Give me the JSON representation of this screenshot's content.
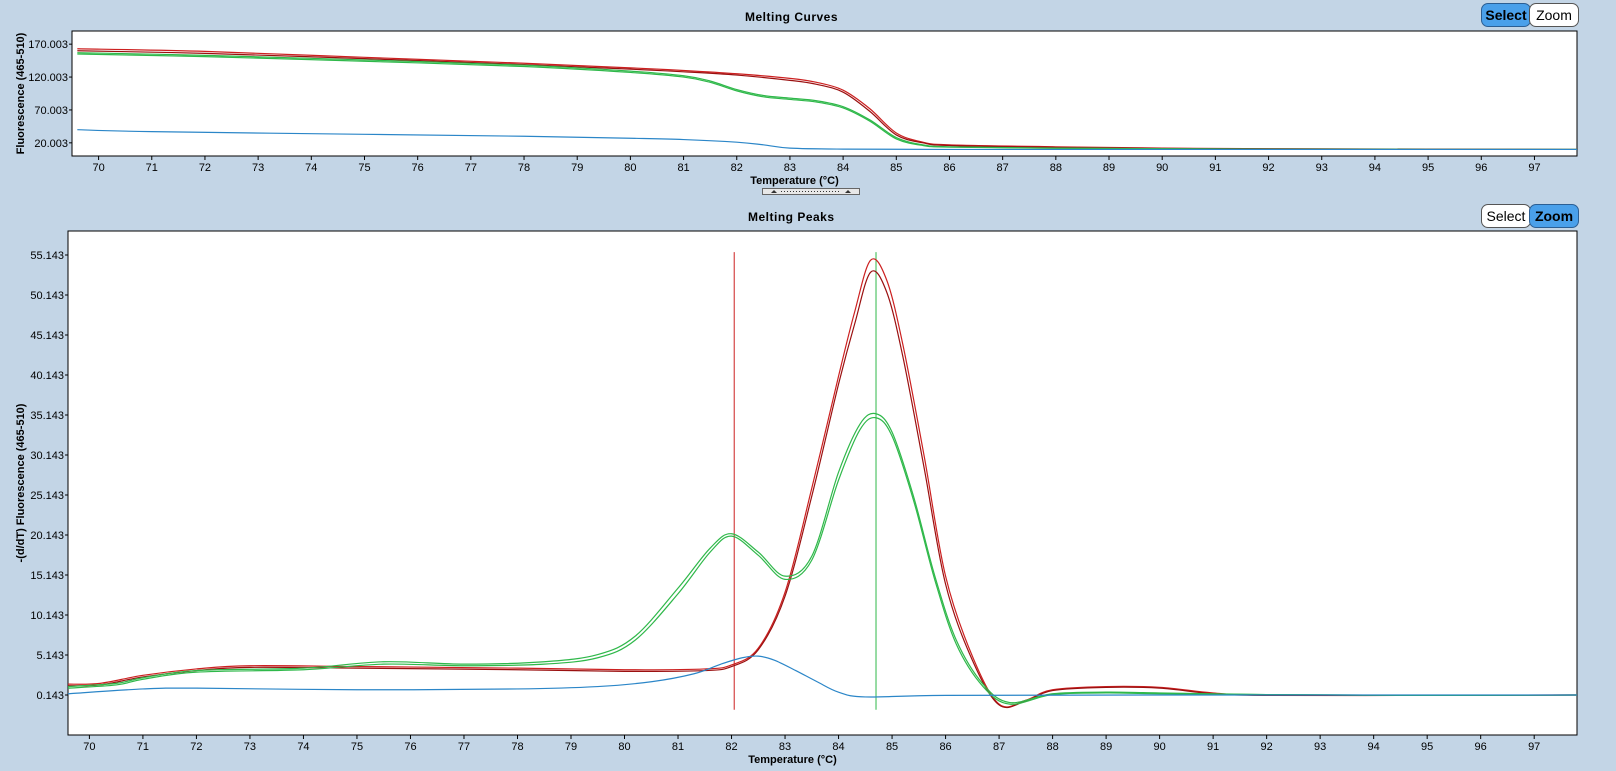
{
  "top_panel": {
    "title": "Melting Curves",
    "select_label": "Select",
    "zoom_label": "Zoom",
    "active_mode": "select"
  },
  "bottom_panel": {
    "title": "Melting Peaks",
    "select_label": "Select",
    "zoom_label": "Zoom",
    "active_mode": "zoom"
  },
  "colors": {
    "red": "#cc2020",
    "darkred": "#9a1010",
    "green": "#2fb84a",
    "blue": "#2b86c8",
    "background": "#c3d5e6"
  },
  "chart_data": [
    {
      "type": "line",
      "title": "Melting Curves",
      "xlabel": "Temperature (°C)",
      "ylabel": "Fluorescence (465-510)",
      "xlim": [
        69.5,
        97.8
      ],
      "ylim": [
        0,
        190
      ],
      "xticks": [
        70,
        71,
        72,
        73,
        74,
        75,
        76,
        77,
        78,
        79,
        80,
        81,
        82,
        83,
        84,
        85,
        86,
        87,
        88,
        89,
        90,
        91,
        92,
        93,
        94,
        95,
        96,
        97
      ],
      "yticks": [
        "20.003",
        "70.003",
        "120.003",
        "170.003"
      ],
      "ytick_values": [
        20.003,
        70.003,
        120.003,
        170.003
      ],
      "grid": false,
      "series": [
        {
          "color": "red",
          "x": [
            69.6,
            72,
            75,
            78,
            80,
            81,
            82,
            83,
            83.5,
            84,
            84.5,
            85,
            85.5,
            86,
            88,
            90,
            92,
            95,
            97.8
          ],
          "y": [
            163,
            159,
            150,
            141,
            134,
            130,
            125,
            118,
            112,
            100,
            72,
            35,
            21,
            17,
            14,
            12,
            11,
            10.5,
            10
          ]
        },
        {
          "color": "darkred",
          "x": [
            69.6,
            72,
            75,
            78,
            80,
            81,
            82,
            83,
            83.5,
            84,
            84.5,
            85,
            85.5,
            86,
            88,
            90,
            92,
            95,
            97.8
          ],
          "y": [
            160,
            156,
            148,
            139,
            132,
            128,
            123,
            115,
            109,
            97,
            68,
            32,
            20,
            16,
            13,
            11.5,
            10.8,
            10.3,
            10
          ]
        },
        {
          "color": "green",
          "x": [
            69.6,
            72,
            75,
            78,
            80,
            81,
            81.5,
            82,
            82.5,
            83,
            83.5,
            84,
            84.5,
            85,
            85.5,
            86,
            88,
            90,
            92,
            95,
            97.8
          ],
          "y": [
            157,
            153,
            146,
            138,
            129,
            122,
            114,
            101,
            92,
            88,
            84,
            75,
            55,
            28,
            17,
            14,
            12,
            11,
            10.5,
            10,
            10
          ]
        },
        {
          "color": "green",
          "x": [
            69.6,
            72,
            75,
            78,
            80,
            81,
            81.5,
            82,
            82.5,
            83,
            83.5,
            84,
            84.5,
            85,
            85.5,
            86,
            88,
            90,
            92,
            95,
            97.8
          ],
          "y": [
            155,
            151,
            144,
            136,
            127,
            120,
            112,
            99,
            90,
            86,
            82,
            73,
            53,
            26,
            16,
            13.5,
            11.8,
            10.8,
            10.3,
            10,
            10
          ]
        },
        {
          "color": "blue",
          "x": [
            69.6,
            71,
            75,
            78,
            80,
            81,
            82,
            82.5,
            83,
            84,
            86,
            90,
            97.8
          ],
          "y": [
            40,
            37,
            33,
            30,
            27,
            25,
            21,
            17,
            12,
            10.5,
            10,
            10,
            10
          ]
        }
      ]
    },
    {
      "type": "line",
      "title": "Melting Peaks",
      "xlabel": "Temperature (°C)",
      "ylabel": "-(d/dT) Fluorescence (465-510)",
      "xlim": [
        69.6,
        97.8
      ],
      "ylim": [
        -4.857,
        58.143
      ],
      "xticks": [
        70,
        71,
        72,
        73,
        74,
        75,
        76,
        77,
        78,
        79,
        80,
        81,
        82,
        83,
        84,
        85,
        86,
        87,
        88,
        89,
        90,
        91,
        92,
        93,
        94,
        95,
        96,
        97
      ],
      "yticks": [
        "0.143",
        "5.143",
        "10.143",
        "15.143",
        "20.143",
        "25.143",
        "30.143",
        "35.143",
        "40.143",
        "45.143",
        "50.143",
        "55.143"
      ],
      "ytick_values": [
        0.143,
        5.143,
        10.143,
        15.143,
        20.143,
        25.143,
        30.143,
        35.143,
        40.143,
        45.143,
        50.143,
        55.143
      ],
      "grid": false,
      "vertical_markers": [
        {
          "x": 82.05,
          "color": "red",
          "y_range": [
            -1.7,
            55.5
          ]
        },
        {
          "x": 84.7,
          "color": "green",
          "y_range": [
            -1.7,
            55.5
          ]
        }
      ],
      "series": [
        {
          "color": "red",
          "x": [
            69.6,
            70.2,
            71,
            72,
            73,
            75,
            78,
            80,
            81.5,
            82,
            82.5,
            83,
            83.5,
            84,
            84.3,
            84.6,
            84.9,
            85.2,
            85.6,
            86,
            86.5,
            87,
            87.5,
            88,
            89,
            90,
            91,
            92,
            95,
            97.8
          ],
          "y": [
            1.5,
            1.6,
            2.6,
            3.4,
            3.8,
            3.7,
            3.5,
            3.3,
            3.4,
            3.9,
            6,
            13,
            26,
            40,
            48,
            54.5,
            52,
            44,
            30,
            15,
            5,
            -1,
            -0.5,
            0.8,
            1.2,
            1.1,
            0.4,
            0.1,
            0.1,
            0.143
          ]
        },
        {
          "color": "darkred",
          "x": [
            69.6,
            70.2,
            71,
            72,
            73,
            75,
            78,
            80,
            81.5,
            82,
            82.5,
            83,
            83.5,
            84,
            84.3,
            84.6,
            84.9,
            85.2,
            85.6,
            86,
            86.5,
            87,
            87.5,
            88,
            89,
            90,
            91,
            92,
            95,
            97.8
          ],
          "y": [
            1.3,
            1.4,
            2.4,
            3.2,
            3.6,
            3.5,
            3.3,
            3.1,
            3.2,
            3.7,
            5.8,
            12.5,
            25,
            39,
            46.5,
            53,
            50.5,
            42.5,
            28.5,
            14,
            4.5,
            -1.1,
            -0.6,
            0.7,
            1.1,
            1.0,
            0.3,
            0.1,
            0.1,
            0.143
          ]
        },
        {
          "color": "green",
          "x": [
            69.6,
            70.5,
            71,
            72,
            74,
            75.5,
            77,
            78.5,
            79.5,
            80.2,
            81,
            81.6,
            82,
            82.5,
            83,
            83.5,
            84,
            84.4,
            84.7,
            85,
            85.4,
            85.8,
            86.2,
            86.7,
            87.2,
            88,
            89,
            90,
            92,
            95,
            97.8
          ],
          "y": [
            1.2,
            1.6,
            2.3,
            3.2,
            3.5,
            4.3,
            4.0,
            4.3,
            5.2,
            7.5,
            13.5,
            18.5,
            20.3,
            18,
            15,
            17.5,
            28,
            34,
            35.3,
            33,
            25,
            15,
            7,
            1.5,
            -0.8,
            0.3,
            0.5,
            0.4,
            0.2,
            0.1,
            0.143
          ]
        },
        {
          "color": "green",
          "x": [
            69.6,
            70.5,
            71,
            72,
            74,
            75.5,
            77,
            78.5,
            79.5,
            80.2,
            81,
            81.6,
            82,
            82.5,
            83,
            83.5,
            84,
            84.4,
            84.7,
            85,
            85.4,
            85.8,
            86.2,
            86.7,
            87.2,
            88,
            89,
            90,
            92,
            95,
            97.8
          ],
          "y": [
            1.0,
            1.4,
            2.1,
            3.0,
            3.3,
            4.0,
            3.8,
            4.0,
            4.8,
            7.0,
            12.8,
            18,
            20,
            17.6,
            14.6,
            17,
            27,
            33.3,
            34.8,
            32.5,
            24.5,
            14.5,
            6.5,
            1.2,
            -1.0,
            0.2,
            0.4,
            0.3,
            0.2,
            0.1,
            0.143
          ]
        },
        {
          "color": "blue",
          "x": [
            69.6,
            71,
            72,
            75,
            78,
            79.5,
            80.5,
            81.3,
            81.8,
            82.2,
            82.5,
            82.8,
            83.2,
            83.6,
            84,
            84.5,
            86,
            90,
            97.8
          ],
          "y": [
            0.3,
            0.9,
            1.0,
            0.8,
            0.9,
            1.2,
            1.8,
            2.8,
            4.0,
            4.8,
            5.0,
            4.5,
            3.2,
            1.8,
            0.5,
            -0.1,
            0.1,
            0.143,
            0.143
          ]
        }
      ]
    }
  ]
}
